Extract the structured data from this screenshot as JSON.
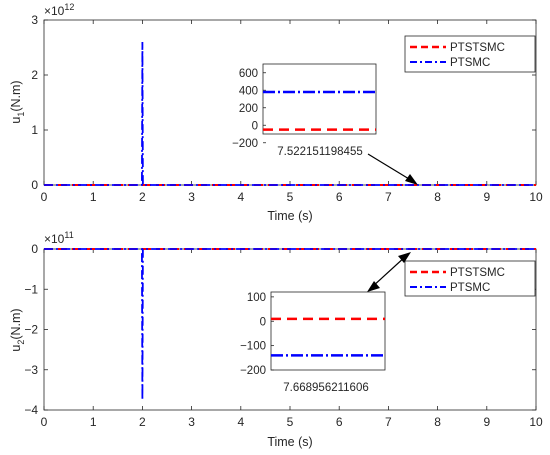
{
  "chart_data": [
    {
      "type": "line",
      "title": "",
      "xlabel": "Time (s)",
      "ylabel_main": "u",
      "ylabel_sub": "1",
      "ylabel_tail": "(N.m)",
      "exponent_base": "×10",
      "exponent_power": "12",
      "xlim": [
        0,
        10
      ],
      "ylim": [
        0,
        3
      ],
      "x_ticks": [
        "0",
        "1",
        "2",
        "3",
        "4",
        "5",
        "6",
        "7",
        "8",
        "9",
        "10"
      ],
      "y_ticks": [
        "0",
        "1",
        "2",
        "3"
      ],
      "legend": {
        "position": "top-right",
        "entries": [
          "PTSTSMC",
          "PTSMC"
        ]
      },
      "series": [
        {
          "name": "PTSTSMC",
          "color": "#ff0000",
          "style": "dashed",
          "points": [
            [
              0,
              0
            ],
            [
              10,
              0
            ]
          ]
        },
        {
          "name": "PTSMC",
          "color": "#0000ff",
          "style": "dash-dot",
          "points": [
            [
              0,
              0
            ],
            [
              1.99,
              0
            ],
            [
              2.0,
              2.6
            ],
            [
              2.01,
              0
            ],
            [
              10,
              0
            ]
          ]
        }
      ],
      "inset": {
        "xlabel": "7.522151198455",
        "ylim": [
          -100,
          700
        ],
        "y_ticks": [
          "600",
          "400",
          "200",
          "0",
          "−200"
        ],
        "values": {
          "PTSTSMC": -50,
          "PTSMC": 380
        },
        "pointer_target_x": 7.6
      }
    },
    {
      "type": "line",
      "title": "",
      "xlabel": "Time (s)",
      "ylabel_main": "u",
      "ylabel_sub": "2",
      "ylabel_tail": "(N.m)",
      "exponent_base": "×10",
      "exponent_power": "11",
      "xlim": [
        0,
        10
      ],
      "ylim": [
        -4,
        0
      ],
      "x_ticks": [
        "0",
        "1",
        "2",
        "3",
        "4",
        "5",
        "6",
        "7",
        "8",
        "9",
        "10"
      ],
      "y_ticks": [
        "0",
        "−1",
        "−2",
        "−3",
        "−4"
      ],
      "legend": {
        "position": "top-right",
        "entries": [
          "PTSTSMC",
          "PTSMC"
        ]
      },
      "series": [
        {
          "name": "PTSTSMC",
          "color": "#ff0000",
          "style": "dashed",
          "points": [
            [
              0,
              0
            ],
            [
              10,
              0
            ]
          ]
        },
        {
          "name": "PTSMC",
          "color": "#0000ff",
          "style": "dash-dot",
          "points": [
            [
              0,
              0
            ],
            [
              1.99,
              0
            ],
            [
              2.0,
              -3.75
            ],
            [
              2.01,
              0
            ],
            [
              10,
              0
            ]
          ]
        }
      ],
      "inset": {
        "xlabel": "7.66895621​1606",
        "ylim": [
          -200,
          120
        ],
        "y_ticks": [
          "100",
          "0",
          "−100",
          "−200"
        ],
        "values": {
          "PTSTSMC": 10,
          "PTSMC": -140
        },
        "pointer_target_x": 7.7
      }
    }
  ]
}
